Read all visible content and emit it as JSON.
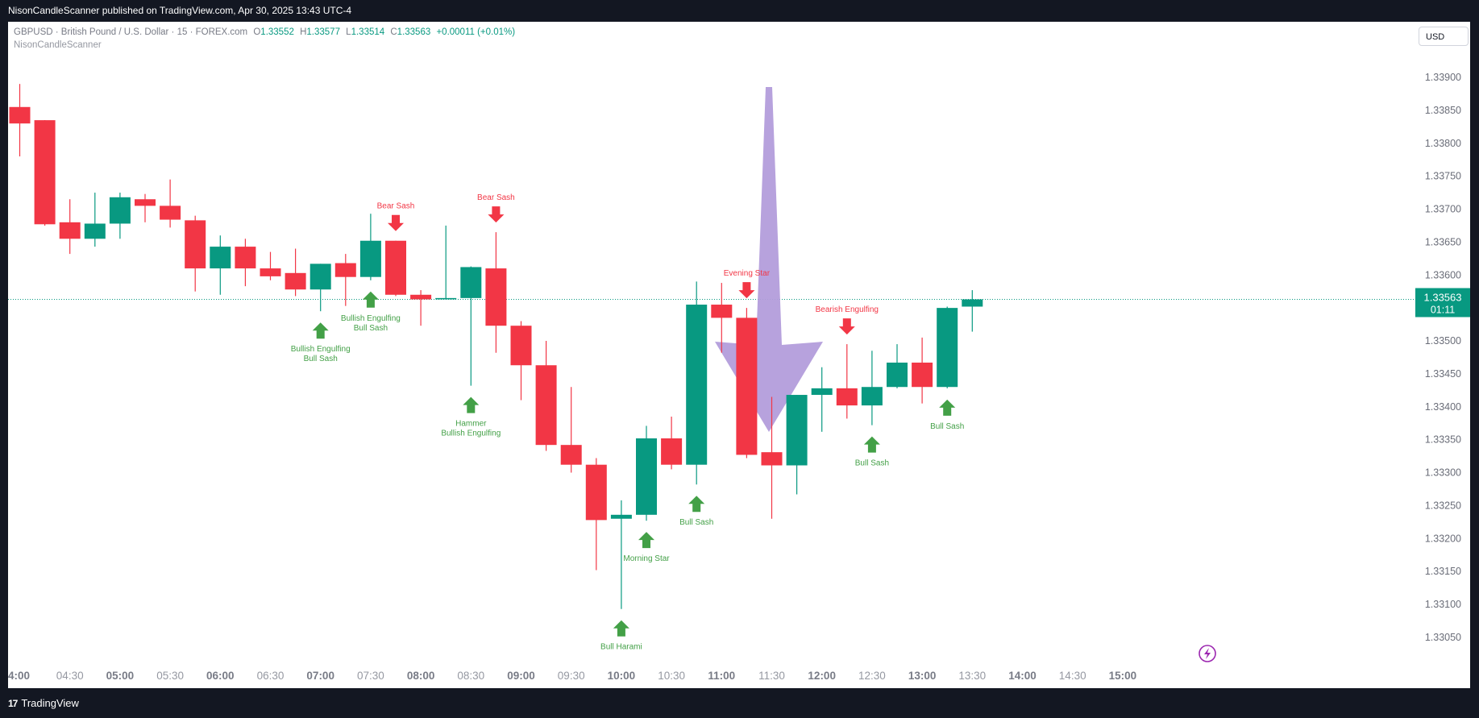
{
  "header": {
    "publisher": "NisonCandleScanner published on TradingView.com, Apr 30, 2025 13:43 UTC-4"
  },
  "legend": {
    "symbol": "GBPUSD · British Pound / U.S. Dollar · 15 · FOREX.com",
    "o_label": "O",
    "o": "1.33552",
    "h_label": "H",
    "h": "1.33577",
    "l_label": "L",
    "l": "1.33514",
    "c_label": "C",
    "c": "1.33563",
    "change": "+0.00011 (+0.01%)",
    "indicator": "NisonCandleScanner"
  },
  "currency": "USD",
  "footer": {
    "brand": "TradingView",
    "logo_glyph": "17"
  },
  "colors": {
    "up": "#089981",
    "down": "#f23645",
    "bull_signal": "#43a047",
    "arrow": "#b39ddb"
  },
  "chart_data": {
    "type": "candlestick",
    "symbol": "GBPUSD",
    "interval": "15",
    "ylim": [
      1.33025,
      1.33955
    ],
    "y_ticks": [
      "1.33900",
      "1.33850",
      "1.33800",
      "1.33750",
      "1.33700",
      "1.33650",
      "1.33600",
      "1.33550",
      "1.33500",
      "1.33450",
      "1.33400",
      "1.33350",
      "1.33300",
      "1.33250",
      "1.33200",
      "1.33150",
      "1.33100",
      "1.33050"
    ],
    "x_ticks": [
      {
        "label": "4:00",
        "bold": true,
        "slot": 0
      },
      {
        "label": "04:30",
        "bold": false,
        "slot": 2
      },
      {
        "label": "05:00",
        "bold": true,
        "slot": 4
      },
      {
        "label": "05:30",
        "bold": false,
        "slot": 6
      },
      {
        "label": "06:00",
        "bold": true,
        "slot": 8
      },
      {
        "label": "06:30",
        "bold": false,
        "slot": 10
      },
      {
        "label": "07:00",
        "bold": true,
        "slot": 12
      },
      {
        "label": "07:30",
        "bold": false,
        "slot": 14
      },
      {
        "label": "08:00",
        "bold": true,
        "slot": 16
      },
      {
        "label": "08:30",
        "bold": false,
        "slot": 18
      },
      {
        "label": "09:00",
        "bold": true,
        "slot": 20
      },
      {
        "label": "09:30",
        "bold": false,
        "slot": 22
      },
      {
        "label": "10:00",
        "bold": true,
        "slot": 24
      },
      {
        "label": "10:30",
        "bold": false,
        "slot": 26
      },
      {
        "label": "11:00",
        "bold": true,
        "slot": 28
      },
      {
        "label": "11:30",
        "bold": false,
        "slot": 30
      },
      {
        "label": "12:00",
        "bold": true,
        "slot": 32
      },
      {
        "label": "12:30",
        "bold": false,
        "slot": 34
      },
      {
        "label": "13:00",
        "bold": true,
        "slot": 36
      },
      {
        "label": "13:30",
        "bold": false,
        "slot": 38
      },
      {
        "label": "14:00",
        "bold": true,
        "slot": 40
      },
      {
        "label": "14:30",
        "bold": false,
        "slot": 42
      },
      {
        "label": "15:00",
        "bold": true,
        "slot": 44
      }
    ],
    "candles": [
      {
        "o": 1.33855,
        "h": 1.3389,
        "l": 1.3378,
        "c": 1.3383
      },
      {
        "o": 1.33835,
        "h": 1.33835,
        "l": 1.33675,
        "c": 1.33677
      },
      {
        "o": 1.3368,
        "h": 1.33715,
        "l": 1.33632,
        "c": 1.33655
      },
      {
        "o": 1.33655,
        "h": 1.33725,
        "l": 1.33643,
        "c": 1.33678
      },
      {
        "o": 1.33678,
        "h": 1.33725,
        "l": 1.33655,
        "c": 1.33718
      },
      {
        "o": 1.33715,
        "h": 1.33723,
        "l": 1.3368,
        "c": 1.33705
      },
      {
        "o": 1.33705,
        "h": 1.33745,
        "l": 1.33672,
        "c": 1.33684
      },
      {
        "o": 1.33683,
        "h": 1.3369,
        "l": 1.33575,
        "c": 1.3361
      },
      {
        "o": 1.3361,
        "h": 1.3366,
        "l": 1.3357,
        "c": 1.33643
      },
      {
        "o": 1.33643,
        "h": 1.33655,
        "l": 1.33583,
        "c": 1.3361
      },
      {
        "o": 1.3361,
        "h": 1.33635,
        "l": 1.33592,
        "c": 1.33598
      },
      {
        "o": 1.33603,
        "h": 1.3364,
        "l": 1.33568,
        "c": 1.33578
      },
      {
        "o": 1.33578,
        "h": 1.33617,
        "l": 1.33545,
        "c": 1.33617
      },
      {
        "o": 1.33618,
        "h": 1.33632,
        "l": 1.33553,
        "c": 1.33597
      },
      {
        "o": 1.33597,
        "h": 1.33693,
        "l": 1.33592,
        "c": 1.33652
      },
      {
        "o": 1.33652,
        "h": 1.33652,
        "l": 1.33568,
        "c": 1.3357
      },
      {
        "o": 1.3357,
        "h": 1.33577,
        "l": 1.33523,
        "c": 1.33563
      },
      {
        "o": 1.33563,
        "h": 1.33675,
        "l": 1.33563,
        "c": 1.33565
      },
      {
        "o": 1.33565,
        "h": 1.33613,
        "l": 1.33432,
        "c": 1.33612
      },
      {
        "o": 1.3361,
        "h": 1.33665,
        "l": 1.33482,
        "c": 1.33523
      },
      {
        "o": 1.33523,
        "h": 1.3353,
        "l": 1.3341,
        "c": 1.33463
      },
      {
        "o": 1.33463,
        "h": 1.335,
        "l": 1.33333,
        "c": 1.33342
      },
      {
        "o": 1.33342,
        "h": 1.3343,
        "l": 1.333,
        "c": 1.33312
      },
      {
        "o": 1.33312,
        "h": 1.33322,
        "l": 1.33152,
        "c": 1.33228
      },
      {
        "o": 1.3323,
        "h": 1.33258,
        "l": 1.33093,
        "c": 1.33236
      },
      {
        "o": 1.33236,
        "h": 1.33371,
        "l": 1.33227,
        "c": 1.33352
      },
      {
        "o": 1.33352,
        "h": 1.33385,
        "l": 1.33305,
        "c": 1.33312
      },
      {
        "o": 1.33312,
        "h": 1.3359,
        "l": 1.33282,
        "c": 1.33555
      },
      {
        "o": 1.33555,
        "h": 1.33588,
        "l": 1.33482,
        "c": 1.33535
      },
      {
        "o": 1.33535,
        "h": 1.3355,
        "l": 1.33322,
        "c": 1.33327
      },
      {
        "o": 1.33331,
        "h": 1.33415,
        "l": 1.3323,
        "c": 1.33311
      },
      {
        "o": 1.33311,
        "h": 1.33418,
        "l": 1.33267,
        "c": 1.33418
      },
      {
        "o": 1.33418,
        "h": 1.3346,
        "l": 1.33362,
        "c": 1.33428
      },
      {
        "o": 1.33428,
        "h": 1.33495,
        "l": 1.33382,
        "c": 1.33402
      },
      {
        "o": 1.33402,
        "h": 1.33485,
        "l": 1.33372,
        "c": 1.3343
      },
      {
        "o": 1.3343,
        "h": 1.33495,
        "l": 1.33428,
        "c": 1.33467
      },
      {
        "o": 1.33467,
        "h": 1.33505,
        "l": 1.33405,
        "c": 1.3343
      },
      {
        "o": 1.3343,
        "h": 1.33552,
        "l": 1.33428,
        "c": 1.3355
      },
      {
        "o": 1.33552,
        "h": 1.33577,
        "l": 1.33514,
        "c": 1.33563
      }
    ],
    "current_price": {
      "value": 1.33563,
      "label": "1.33563",
      "countdown": "01:11"
    },
    "signals": [
      {
        "slot": 12,
        "dir": "bull",
        "lines": [
          "Bullish Engulfing",
          "Bull Sash"
        ]
      },
      {
        "slot": 14,
        "dir": "bull",
        "lines": [
          "Bullish Engulfing",
          "Bull Sash"
        ]
      },
      {
        "slot": 15,
        "dir": "bear",
        "lines": [
          "Bear Sash"
        ]
      },
      {
        "slot": 18,
        "dir": "bull",
        "lines": [
          "Hammer",
          "Bullish Engulfing"
        ]
      },
      {
        "slot": 19,
        "dir": "bear",
        "lines": [
          "Bear Sash"
        ]
      },
      {
        "slot": 24,
        "dir": "bull",
        "lines": [
          "Bull Harami"
        ]
      },
      {
        "slot": 25,
        "dir": "bull",
        "lines": [
          "Morning Star"
        ]
      },
      {
        "slot": 27,
        "dir": "bull",
        "lines": [
          "Bull Sash"
        ]
      },
      {
        "slot": 29,
        "dir": "bear",
        "lines": [
          "Evening Star"
        ]
      },
      {
        "slot": 33,
        "dir": "bear",
        "lines": [
          "Bearish Engulfing"
        ]
      },
      {
        "slot": 34,
        "dir": "bull",
        "lines": [
          "Bull Sash"
        ]
      },
      {
        "slot": 37,
        "dir": "bull",
        "lines": [
          "Bull Sash"
        ]
      }
    ]
  }
}
